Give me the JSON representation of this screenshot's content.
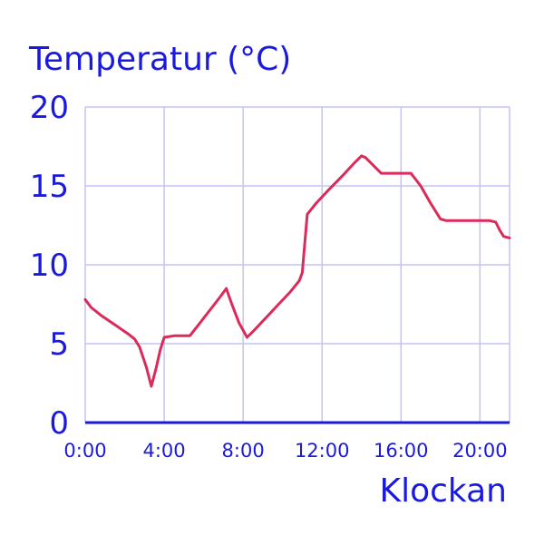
{
  "chart_data": {
    "type": "line",
    "ylabel": "Temperatur (°C)",
    "xlabel": "Klockan",
    "x_unit": "hours",
    "xlim": [
      0,
      21.5
    ],
    "ylim": [
      0,
      20
    ],
    "yticks": [
      0,
      5,
      10,
      15,
      20
    ],
    "ytick_labels": [
      "0",
      "5",
      "10",
      "15",
      "20"
    ],
    "xticks": [
      0,
      4,
      8,
      12,
      16,
      20
    ],
    "xtick_labels": [
      "0:00",
      "4:00",
      "8:00",
      "12:00",
      "16:00",
      "20:00"
    ],
    "grid": true,
    "colors": {
      "line": "#dc2a5a",
      "axis": "#1a1adf",
      "grid": "#c4c4f4",
      "text": "#1a1adf"
    },
    "series": [
      {
        "x": [
          0,
          0.3,
          0.8,
          1.5,
          2.2,
          2.5,
          2.75,
          3.1,
          3.35,
          3.6,
          3.8,
          4.0,
          4.5,
          5.0,
          5.3,
          5.8,
          6.3,
          6.8,
          7.15,
          7.4,
          7.8,
          8.2,
          8.6,
          9.2,
          9.8,
          10.4,
          10.85,
          11.0,
          11.1,
          11.25,
          11.7,
          12.3,
          13.0,
          13.6,
          14.0,
          14.2,
          14.6,
          15.0,
          15.5,
          16.0,
          16.5,
          17.0,
          17.5,
          18.0,
          18.3,
          19.0,
          20.0,
          20.5,
          20.8,
          21.0,
          21.2,
          21.5
        ],
        "y": [
          7.8,
          7.3,
          6.8,
          6.2,
          5.6,
          5.3,
          4.8,
          3.5,
          2.3,
          3.5,
          4.6,
          5.4,
          5.5,
          5.5,
          5.5,
          6.3,
          7.1,
          7.9,
          8.5,
          7.6,
          6.3,
          5.4,
          5.9,
          6.7,
          7.5,
          8.3,
          9.0,
          9.5,
          11.0,
          13.2,
          13.9,
          14.7,
          15.6,
          16.4,
          16.9,
          16.8,
          16.3,
          15.8,
          15.8,
          15.8,
          15.8,
          15.0,
          13.9,
          12.9,
          12.8,
          12.8,
          12.8,
          12.8,
          12.7,
          12.2,
          11.8,
          11.7
        ]
      }
    ]
  }
}
